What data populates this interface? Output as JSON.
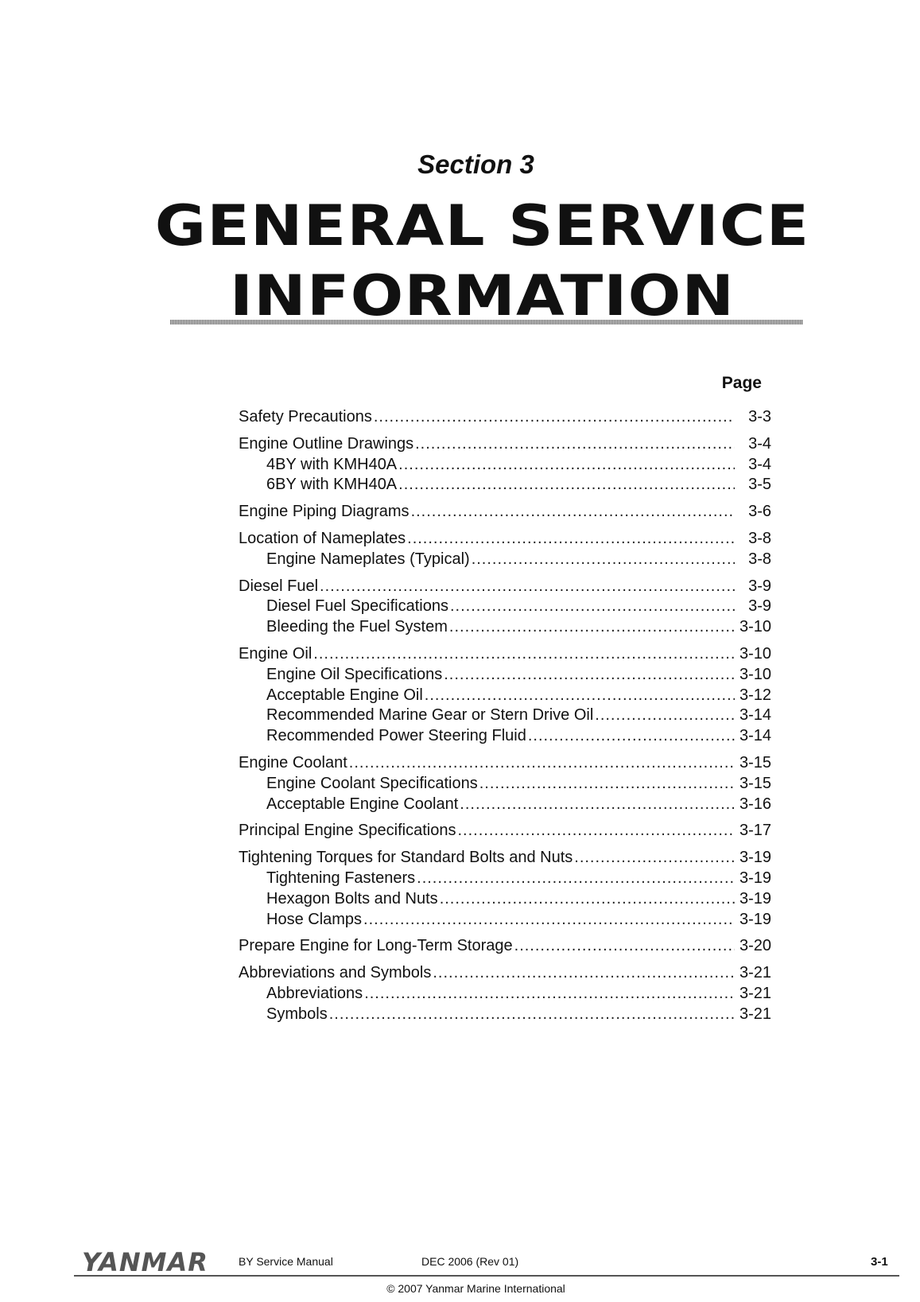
{
  "header": {
    "section": "Section 3",
    "title_line1": "GENERAL SERVICE",
    "title_line2": "INFORMATION"
  },
  "toc": {
    "page_header": "Page",
    "entries": [
      {
        "label": "Safety Precautions",
        "page": "3-3",
        "level": 1
      },
      {
        "label": "Engine Outline Drawings",
        "page": "3-4",
        "level": 1
      },
      {
        "label": "4BY with KMH40A",
        "page": "3-4",
        "level": 2
      },
      {
        "label": "6BY with KMH40A",
        "page": "3-5",
        "level": 2
      },
      {
        "label": "Engine Piping Diagrams",
        "page": "3-6",
        "level": 1
      },
      {
        "label": "Location of Nameplates",
        "page": "3-8",
        "level": 1
      },
      {
        "label": "Engine Nameplates (Typical)",
        "page": "3-8",
        "level": 2
      },
      {
        "label": "Diesel Fuel",
        "page": "3-9",
        "level": 1
      },
      {
        "label": "Diesel Fuel Specifications",
        "page": "3-9",
        "level": 2
      },
      {
        "label": "Bleeding the Fuel System",
        "page": "3-10",
        "level": 2
      },
      {
        "label": "Engine Oil",
        "page": "3-10",
        "level": 1
      },
      {
        "label": "Engine Oil Specifications",
        "page": "3-10",
        "level": 2
      },
      {
        "label": "Acceptable Engine Oil",
        "page": "3-12",
        "level": 2
      },
      {
        "label": "Recommended Marine Gear or Stern Drive Oil",
        "page": "3-14",
        "level": 2
      },
      {
        "label": "Recommended Power Steering Fluid",
        "page": "3-14",
        "level": 2
      },
      {
        "label": "Engine Coolant",
        "page": "3-15",
        "level": 1
      },
      {
        "label": "Engine Coolant Specifications",
        "page": "3-15",
        "level": 2
      },
      {
        "label": "Acceptable Engine Coolant",
        "page": "3-16",
        "level": 2
      },
      {
        "label": "Principal Engine Specifications",
        "page": "3-17",
        "level": 1
      },
      {
        "label": "Tightening Torques for Standard Bolts and Nuts",
        "page": "3-19",
        "level": 1
      },
      {
        "label": "Tightening Fasteners",
        "page": "3-19",
        "level": 2
      },
      {
        "label": "Hexagon Bolts and Nuts",
        "page": "3-19",
        "level": 2
      },
      {
        "label": "Hose Clamps",
        "page": "3-19",
        "level": 2
      },
      {
        "label": "Prepare Engine for Long-Term Storage",
        "page": "3-20",
        "level": 1
      },
      {
        "label": "Abbreviations and Symbols",
        "page": "3-21",
        "level": 1
      },
      {
        "label": "Abbreviations",
        "page": "3-21",
        "level": 2
      },
      {
        "label": "Symbols",
        "page": "3-21",
        "level": 2
      }
    ]
  },
  "footer": {
    "logo": "YANMAR",
    "manual": "BY Service Manual",
    "date": "DEC 2006 (Rev 01)",
    "page_number": "3-1",
    "copyright": "© 2007 Yanmar Marine International"
  }
}
